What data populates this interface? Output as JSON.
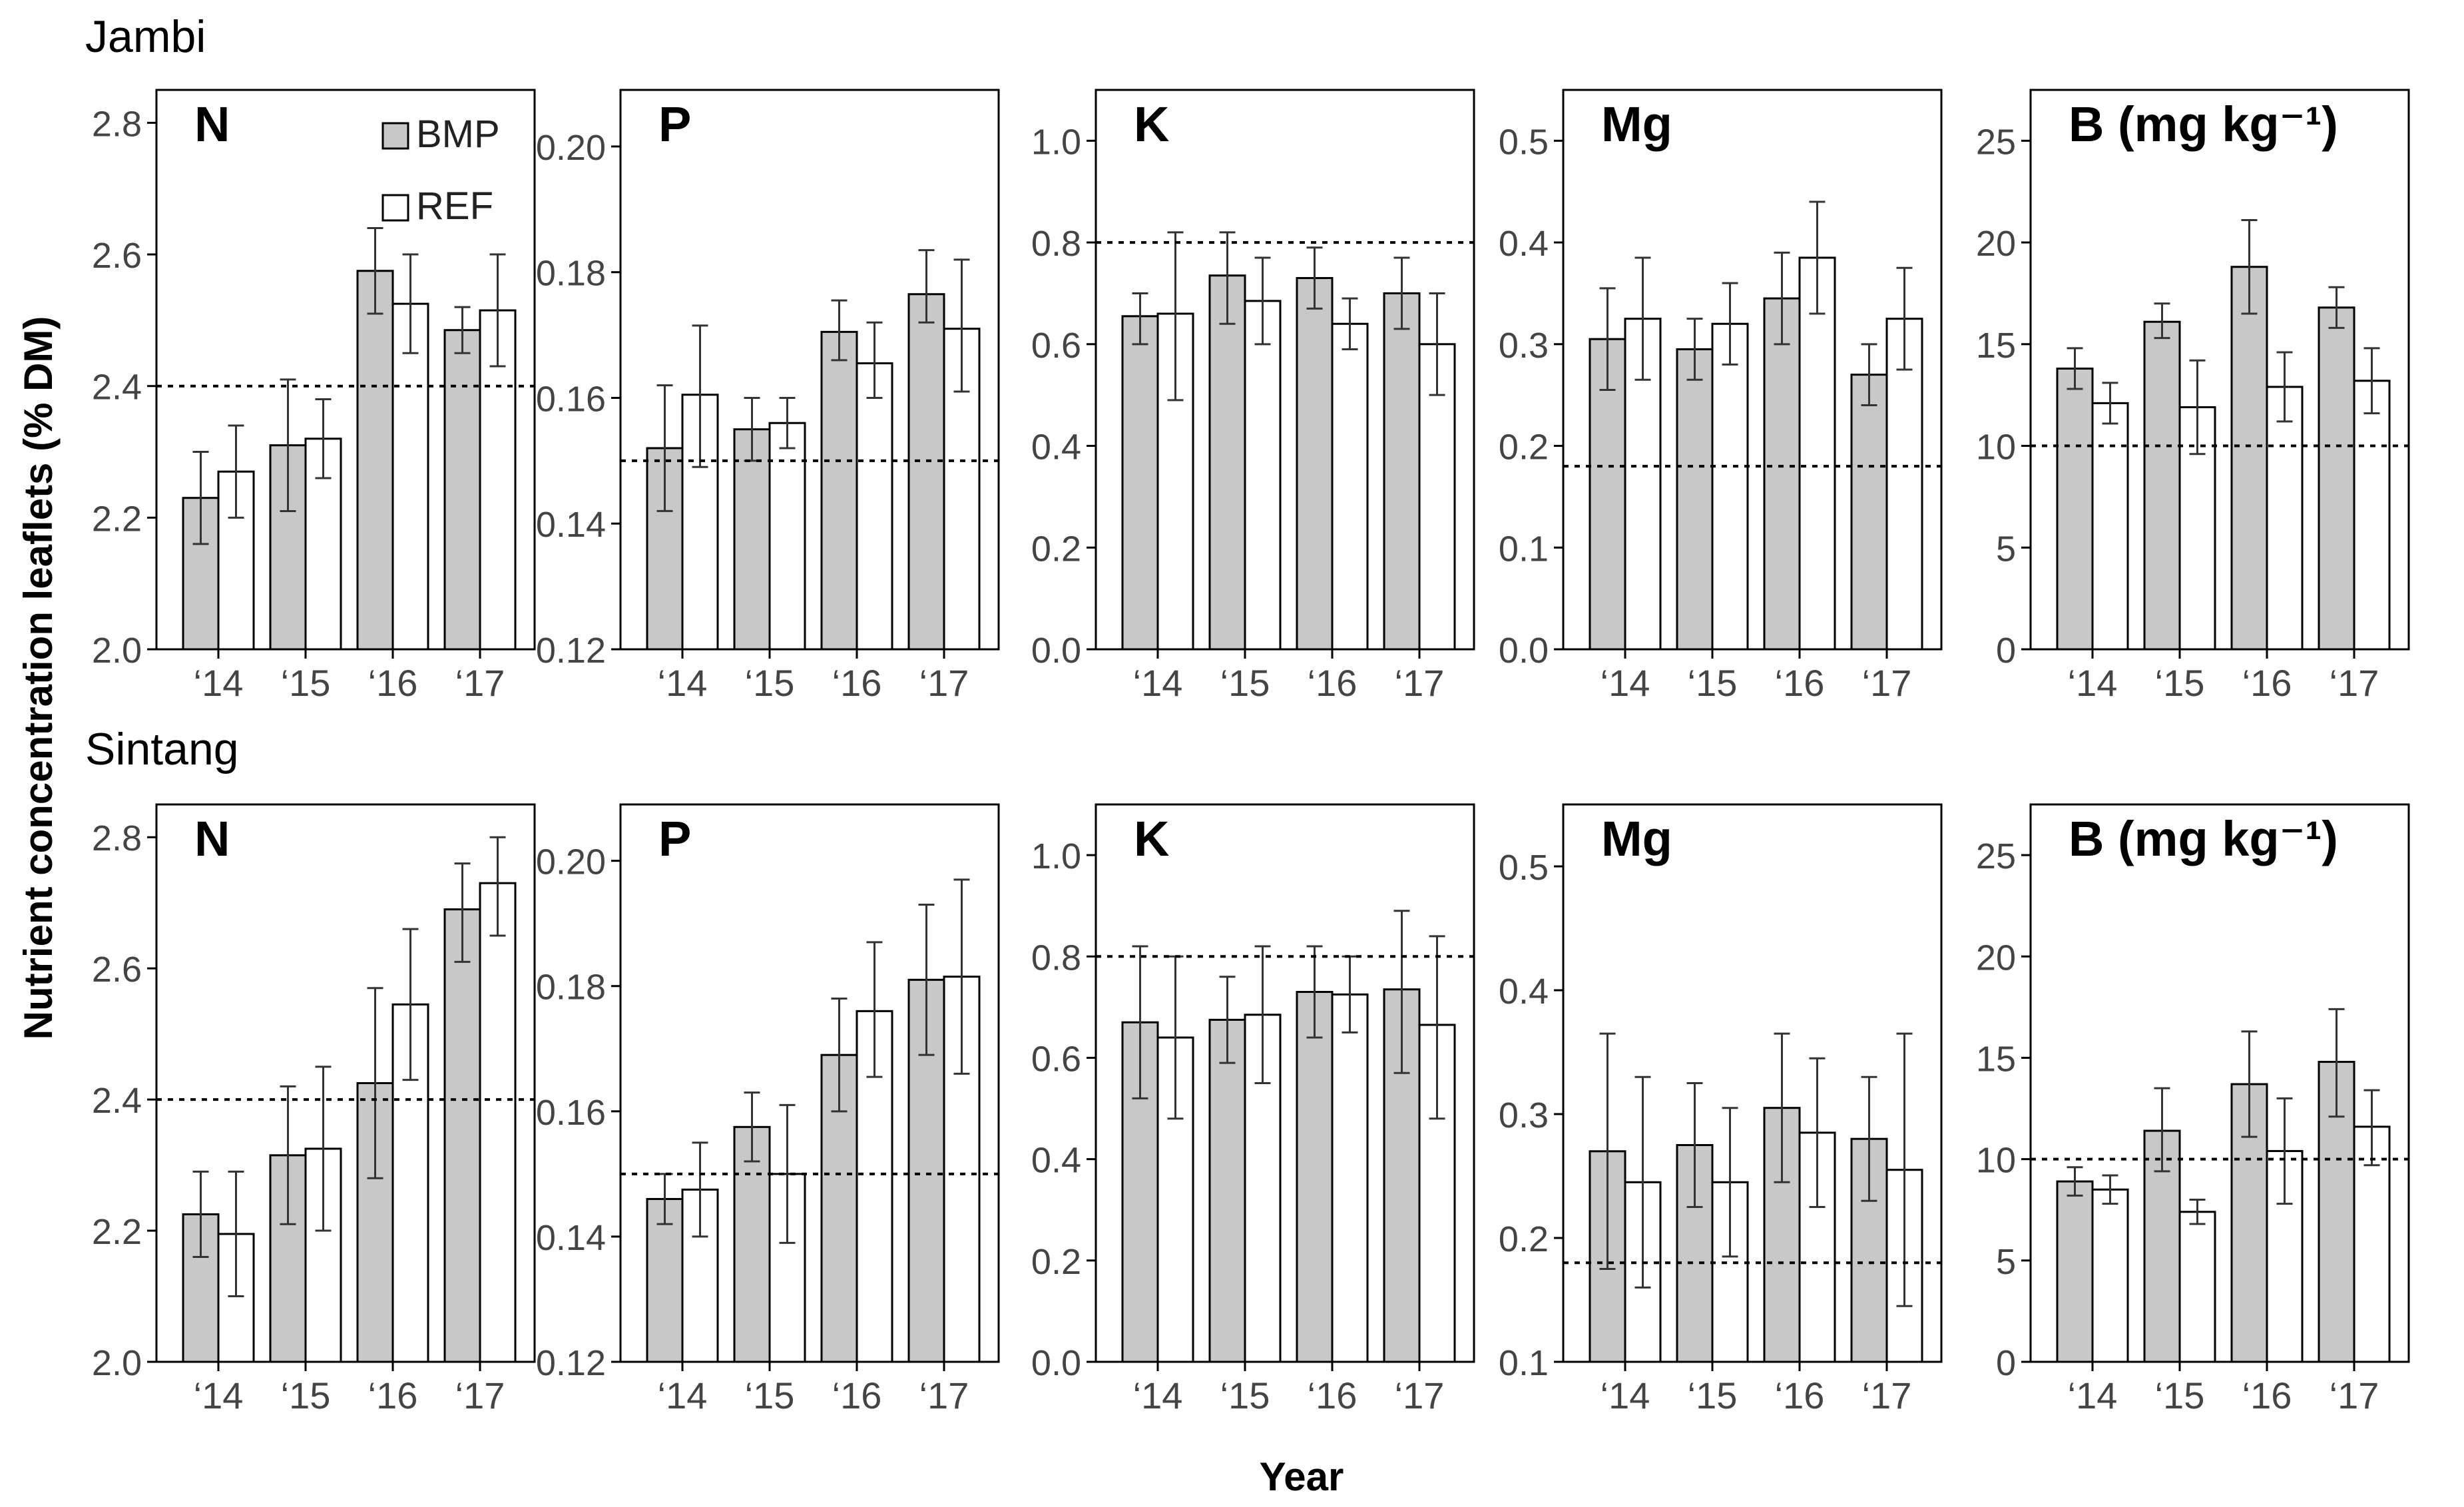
{
  "chart_data": {
    "type": "bar",
    "ylabel": "Nutrient concentration leaflets (% DM)",
    "xlabel": "Year",
    "categories": [
      "‘14",
      "‘15",
      "‘16",
      "‘17"
    ],
    "legend": [
      "BMP",
      "REF"
    ],
    "colors": {
      "BMP": "#c8c8c8",
      "REF": "#ffffff",
      "axis": "#000000",
      "tick_text": "#444444"
    },
    "sites": [
      {
        "name": "Jambi",
        "panels": [
          {
            "label": "N",
            "ylim": [
              2.0,
              2.85
            ],
            "ticks": [
              "2.0",
              "2.2",
              "2.4",
              "2.6",
              "2.8"
            ],
            "ref_line": 2.4,
            "series": [
              {
                "name": "BMP",
                "values": [
                  2.23,
                  2.31,
                  2.575,
                  2.485
                ],
                "err": [
                  [
                    2.16,
                    2.3
                  ],
                  [
                    2.21,
                    2.41
                  ],
                  [
                    2.51,
                    2.64
                  ],
                  [
                    2.45,
                    2.52
                  ]
                ]
              },
              {
                "name": "REF",
                "values": [
                  2.27,
                  2.32,
                  2.525,
                  2.515
                ],
                "err": [
                  [
                    2.2,
                    2.34
                  ],
                  [
                    2.26,
                    2.38
                  ],
                  [
                    2.45,
                    2.6
                  ],
                  [
                    2.43,
                    2.6
                  ]
                ]
              }
            ]
          },
          {
            "label": "P",
            "ylim": [
              0.12,
              0.209
            ],
            "ticks": [
              "0.12",
              "0.14",
              "0.16",
              "0.18",
              "0.20"
            ],
            "ref_line": 0.15,
            "series": [
              {
                "name": "BMP",
                "values": [
                  0.152,
                  0.155,
                  0.1705,
                  0.1765
                ],
                "err": [
                  [
                    0.142,
                    0.162
                  ],
                  [
                    0.15,
                    0.16
                  ],
                  [
                    0.166,
                    0.1755
                  ],
                  [
                    0.172,
                    0.1835
                  ]
                ]
              },
              {
                "name": "REF",
                "values": [
                  0.1605,
                  0.156,
                  0.1655,
                  0.171
                ],
                "err": [
                  [
                    0.149,
                    0.1715
                  ],
                  [
                    0.152,
                    0.16
                  ],
                  [
                    0.16,
                    0.172
                  ],
                  [
                    0.161,
                    0.182
                  ]
                ]
              }
            ]
          },
          {
            "label": "K",
            "ylim": [
              0.0,
              1.1
            ],
            "ticks": [
              "0.0",
              "0.2",
              "0.4",
              "0.6",
              "0.8",
              "1.0"
            ],
            "ref_line": 0.8,
            "series": [
              {
                "name": "BMP",
                "values": [
                  0.655,
                  0.735,
                  0.73,
                  0.7
                ],
                "err": [
                  [
                    0.6,
                    0.7
                  ],
                  [
                    0.64,
                    0.82
                  ],
                  [
                    0.67,
                    0.79
                  ],
                  [
                    0.63,
                    0.77
                  ]
                ]
              },
              {
                "name": "REF",
                "values": [
                  0.66,
                  0.685,
                  0.64,
                  0.6
                ],
                "err": [
                  [
                    0.49,
                    0.82
                  ],
                  [
                    0.6,
                    0.77
                  ],
                  [
                    0.59,
                    0.69
                  ],
                  [
                    0.5,
                    0.7
                  ]
                ]
              }
            ]
          },
          {
            "label": "Mg",
            "ylim": [
              0.0,
              0.55
            ],
            "ticks": [
              "0.0",
              "0.1",
              "0.2",
              "0.3",
              "0.4",
              "0.5"
            ],
            "ref_line": 0.18,
            "series": [
              {
                "name": "BMP",
                "values": [
                  0.305,
                  0.295,
                  0.345,
                  0.27
                ],
                "err": [
                  [
                    0.255,
                    0.355
                  ],
                  [
                    0.265,
                    0.325
                  ],
                  [
                    0.3,
                    0.39
                  ],
                  [
                    0.24,
                    0.3
                  ]
                ]
              },
              {
                "name": "REF",
                "values": [
                  0.325,
                  0.32,
                  0.385,
                  0.325
                ],
                "err": [
                  [
                    0.265,
                    0.385
                  ],
                  [
                    0.28,
                    0.36
                  ],
                  [
                    0.33,
                    0.44
                  ],
                  [
                    0.275,
                    0.375
                  ]
                ]
              }
            ]
          },
          {
            "label": "B (mg kg⁻¹)",
            "ylim": [
              0,
              27.5
            ],
            "ticks": [
              "0",
              "5",
              "10",
              "15",
              "20",
              "25"
            ],
            "ref_line": 10,
            "series": [
              {
                "name": "BMP",
                "values": [
                  13.8,
                  16.1,
                  18.8,
                  16.8
                ],
                "err": [
                  [
                    12.8,
                    14.8
                  ],
                  [
                    15.3,
                    17.0
                  ],
                  [
                    16.5,
                    21.1
                  ],
                  [
                    15.8,
                    17.8
                  ]
                ]
              },
              {
                "name": "REF",
                "values": [
                  12.1,
                  11.9,
                  12.9,
                  13.2
                ],
                "err": [
                  [
                    11.1,
                    13.1
                  ],
                  [
                    9.6,
                    14.2
                  ],
                  [
                    11.2,
                    14.6
                  ],
                  [
                    11.6,
                    14.8
                  ]
                ]
              }
            ]
          }
        ]
      },
      {
        "name": "Sintang",
        "panels": [
          {
            "label": "N",
            "ylim": [
              2.0,
              2.85
            ],
            "ticks": [
              "2.0",
              "2.2",
              "2.4",
              "2.6",
              "2.8"
            ],
            "ref_line": 2.4,
            "series": [
              {
                "name": "BMP",
                "values": [
                  2.225,
                  2.315,
                  2.425,
                  2.69
                ],
                "err": [
                  [
                    2.16,
                    2.29
                  ],
                  [
                    2.21,
                    2.42
                  ],
                  [
                    2.28,
                    2.57
                  ],
                  [
                    2.61,
                    2.76
                  ]
                ]
              },
              {
                "name": "REF",
                "values": [
                  2.195,
                  2.325,
                  2.545,
                  2.73
                ],
                "err": [
                  [
                    2.1,
                    2.29
                  ],
                  [
                    2.2,
                    2.45
                  ],
                  [
                    2.43,
                    2.66
                  ],
                  [
                    2.65,
                    2.8
                  ]
                ]
              }
            ]
          },
          {
            "label": "P",
            "ylim": [
              0.12,
              0.209
            ],
            "ticks": [
              "0.12",
              "0.14",
              "0.16",
              "0.18",
              "0.20"
            ],
            "ref_line": 0.15,
            "series": [
              {
                "name": "BMP",
                "values": [
                  0.146,
                  0.1575,
                  0.169,
                  0.181
                ],
                "err": [
                  [
                    0.142,
                    0.15
                  ],
                  [
                    0.152,
                    0.163
                  ],
                  [
                    0.16,
                    0.178
                  ],
                  [
                    0.169,
                    0.193
                  ]
                ]
              },
              {
                "name": "REF",
                "values": [
                  0.1475,
                  0.15,
                  0.176,
                  0.1815
                ],
                "err": [
                  [
                    0.14,
                    0.155
                  ],
                  [
                    0.139,
                    0.161
                  ],
                  [
                    0.1655,
                    0.187
                  ],
                  [
                    0.166,
                    0.197
                  ]
                ]
              }
            ]
          },
          {
            "label": "K",
            "ylim": [
              0.0,
              1.1
            ],
            "ticks": [
              "0.0",
              "0.2",
              "0.4",
              "0.6",
              "0.8",
              "1.0"
            ],
            "ref_line": 0.8,
            "series": [
              {
                "name": "BMP",
                "values": [
                  0.67,
                  0.675,
                  0.73,
                  0.735
                ],
                "err": [
                  [
                    0.52,
                    0.82
                  ],
                  [
                    0.59,
                    0.76
                  ],
                  [
                    0.64,
                    0.82
                  ],
                  [
                    0.57,
                    0.89
                  ]
                ]
              },
              {
                "name": "REF",
                "values": [
                  0.64,
                  0.685,
                  0.725,
                  0.665
                ],
                "err": [
                  [
                    0.48,
                    0.8
                  ],
                  [
                    0.55,
                    0.82
                  ],
                  [
                    0.65,
                    0.8
                  ],
                  [
                    0.48,
                    0.84
                  ]
                ]
              }
            ]
          },
          {
            "label": "Mg",
            "ylim": [
              0.1,
              0.55
            ],
            "ticks": [
              "0.1",
              "0.2",
              "0.3",
              "0.4",
              "0.5"
            ],
            "ref_line": 0.18,
            "series": [
              {
                "name": "BMP",
                "values": [
                  0.27,
                  0.275,
                  0.305,
                  0.28
                ],
                "err": [
                  [
                    0.175,
                    0.365
                  ],
                  [
                    0.225,
                    0.325
                  ],
                  [
                    0.245,
                    0.365
                  ],
                  [
                    0.23,
                    0.33
                  ]
                ]
              },
              {
                "name": "REF",
                "values": [
                  0.245,
                  0.245,
                  0.285,
                  0.255
                ],
                "err": [
                  [
                    0.16,
                    0.33
                  ],
                  [
                    0.185,
                    0.305
                  ],
                  [
                    0.225,
                    0.345
                  ],
                  [
                    0.145,
                    0.365
                  ]
                ]
              }
            ]
          },
          {
            "label": "B (mg kg⁻¹)",
            "ylim": [
              0,
              27.5
            ],
            "ticks": [
              "0",
              "5",
              "10",
              "15",
              "20",
              "25"
            ],
            "ref_line": 10,
            "series": [
              {
                "name": "BMP",
                "values": [
                  8.9,
                  11.4,
                  13.7,
                  14.8
                ],
                "err": [
                  [
                    8.2,
                    9.6
                  ],
                  [
                    9.4,
                    13.5
                  ],
                  [
                    11.1,
                    16.3
                  ],
                  [
                    12.1,
                    17.4
                  ]
                ]
              },
              {
                "name": "REF",
                "values": [
                  8.5,
                  7.4,
                  10.4,
                  11.6
                ],
                "err": [
                  [
                    7.8,
                    9.2
                  ],
                  [
                    6.8,
                    8.0
                  ],
                  [
                    7.8,
                    13.0
                  ],
                  [
                    9.7,
                    13.4
                  ]
                ]
              }
            ]
          }
        ]
      }
    ]
  }
}
